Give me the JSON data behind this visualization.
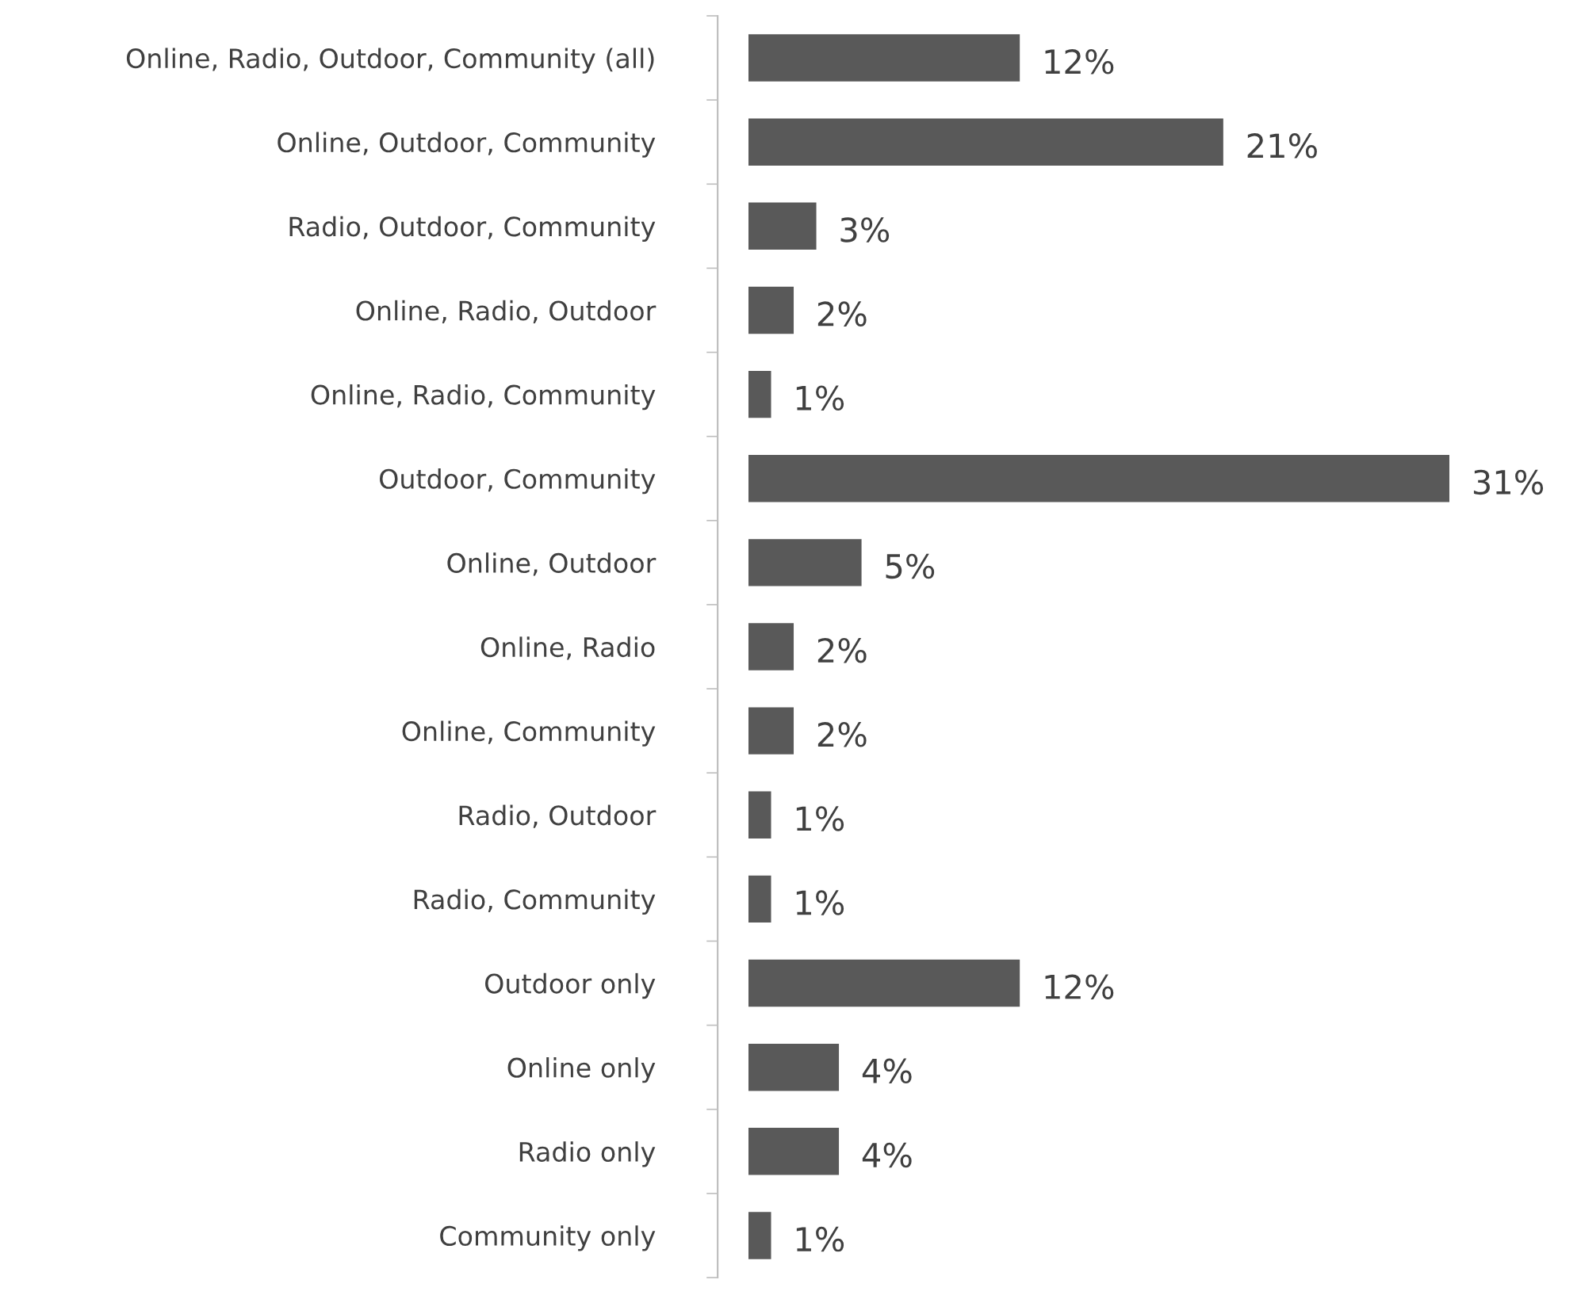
{
  "chart_data": {
    "type": "bar",
    "orientation": "horizontal",
    "categories": [
      "Online, Radio, Outdoor, Community (all)",
      "Online, Outdoor, Community",
      "Radio, Outdoor, Community",
      "Online, Radio, Outdoor",
      "Online, Radio, Community",
      "Outdoor, Community",
      "Online, Outdoor",
      "Online, Radio",
      "Online, Community",
      "Radio, Outdoor",
      "Radio, Community",
      "Outdoor only",
      "Online only",
      "Radio only",
      "Community only"
    ],
    "values": [
      12,
      21,
      3,
      2,
      1,
      31,
      5,
      2,
      2,
      1,
      1,
      12,
      4,
      4,
      1
    ],
    "value_labels": [
      "12%",
      "21%",
      "3%",
      "2%",
      "1%",
      "31%",
      "5%",
      "2%",
      "2%",
      "1%",
      "1%",
      "12%",
      "4%",
      "4%",
      "1%"
    ],
    "color": "#595959",
    "grid": false,
    "legend": false
  }
}
